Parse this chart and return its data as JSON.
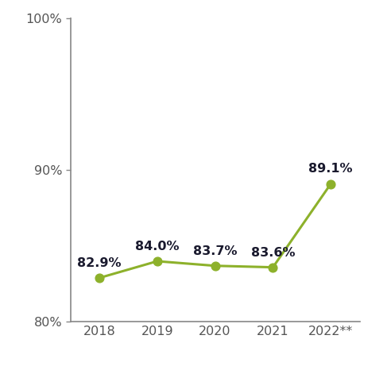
{
  "years": [
    "2018",
    "2019",
    "2020",
    "2021",
    "2022**"
  ],
  "values": [
    82.9,
    84.0,
    83.7,
    83.6,
    89.1
  ],
  "labels": [
    "82.9%",
    "84.0%",
    "83.7%",
    "83.6%",
    "89.1%"
  ],
  "line_color": "#8db12b",
  "marker_color": "#8db12b",
  "ylim": [
    80,
    100
  ],
  "yticks": [
    80,
    90,
    100
  ],
  "ytick_labels": [
    "80%",
    "90%",
    "100%"
  ],
  "background_color": "#ffffff",
  "label_fontsize": 11.5,
  "tick_fontsize": 11.5,
  "label_color": "#1a1a2e",
  "annotation_fontweight": "bold",
  "spine_color": "#888888",
  "tick_color": "#555555"
}
